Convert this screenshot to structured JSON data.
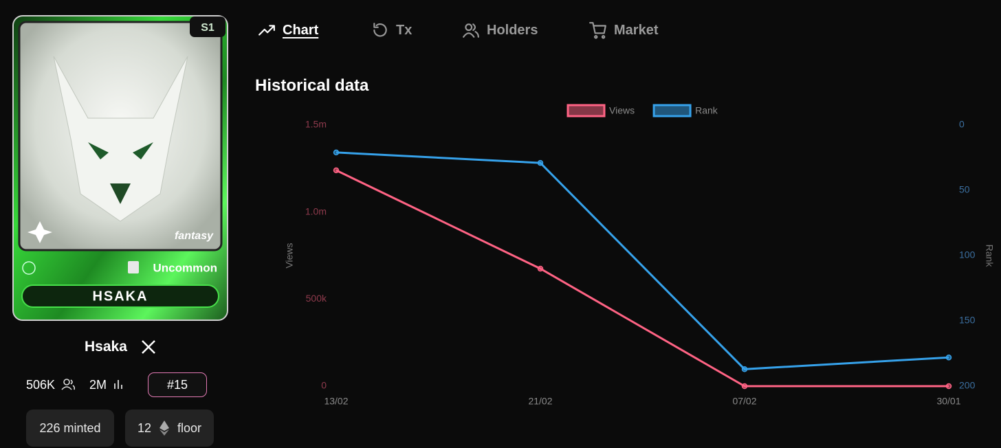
{
  "tabs": [
    "Chart",
    "Tx",
    "Holders",
    "Market"
  ],
  "card": {
    "season": "S1",
    "tag": "fantasy",
    "rarity": "Uncommon",
    "name": "HSAKA"
  },
  "profile": {
    "name": "Hsaka",
    "followers": "506K",
    "views": "2M",
    "rank": "#15",
    "minted": "226 minted",
    "floor_price": "12",
    "floor_label": "floor"
  },
  "section_title": "Historical data",
  "chart_data": {
    "type": "line",
    "categories": [
      "13/02",
      "21/02",
      "07/02",
      "30/01"
    ],
    "series": [
      {
        "name": "Views",
        "color": "#ff6384",
        "values": [
          1240000,
          675000,
          0,
          0
        ]
      },
      {
        "name": "Rank",
        "color": "#36a2eb",
        "axis": "y2",
        "values": [
          21,
          29,
          187,
          178
        ]
      }
    ],
    "ylabel": "Views",
    "y2label": "Rank",
    "ylim": [
      0,
      1500000
    ],
    "yticks": [
      0,
      {
        "value": 500000,
        "label": "500k"
      },
      {
        "value": 1000000,
        "label": "1.0m"
      },
      {
        "value": 1500000,
        "label": "1.5m"
      }
    ],
    "y2lim": [
      200,
      0
    ],
    "y2ticks": [
      0,
      50,
      100,
      150,
      200
    ],
    "grid": false,
    "legend": "top"
  }
}
